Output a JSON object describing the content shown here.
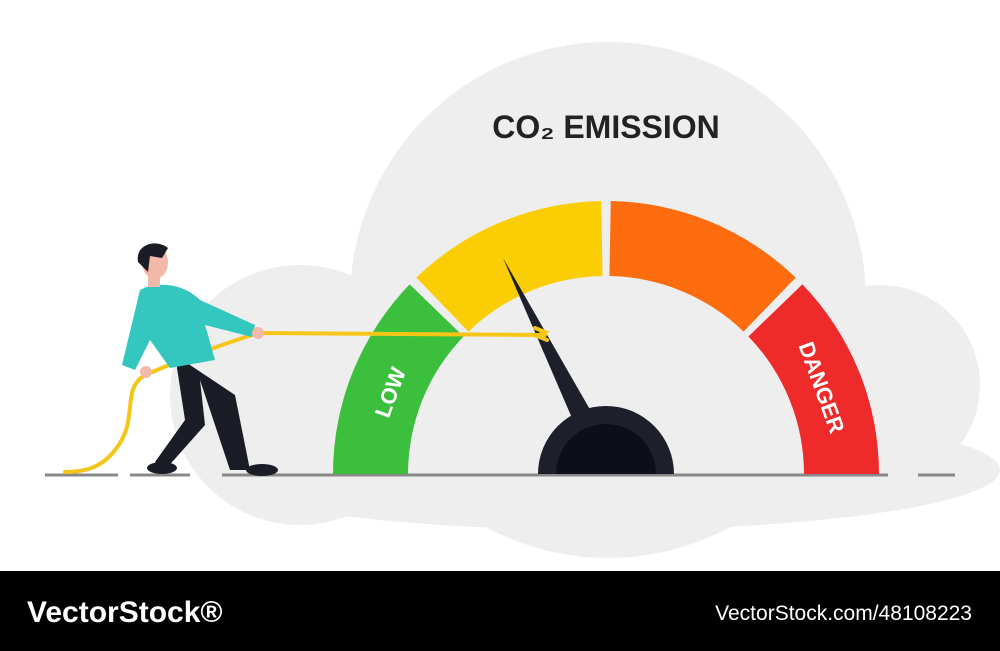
{
  "title": "CO₂ EMISSION",
  "gauge": {
    "low_label": "LOW",
    "danger_label": "DANGER"
  },
  "footer": {
    "brand": "VectorStock®",
    "url": "VectorStock.com/48108223"
  }
}
